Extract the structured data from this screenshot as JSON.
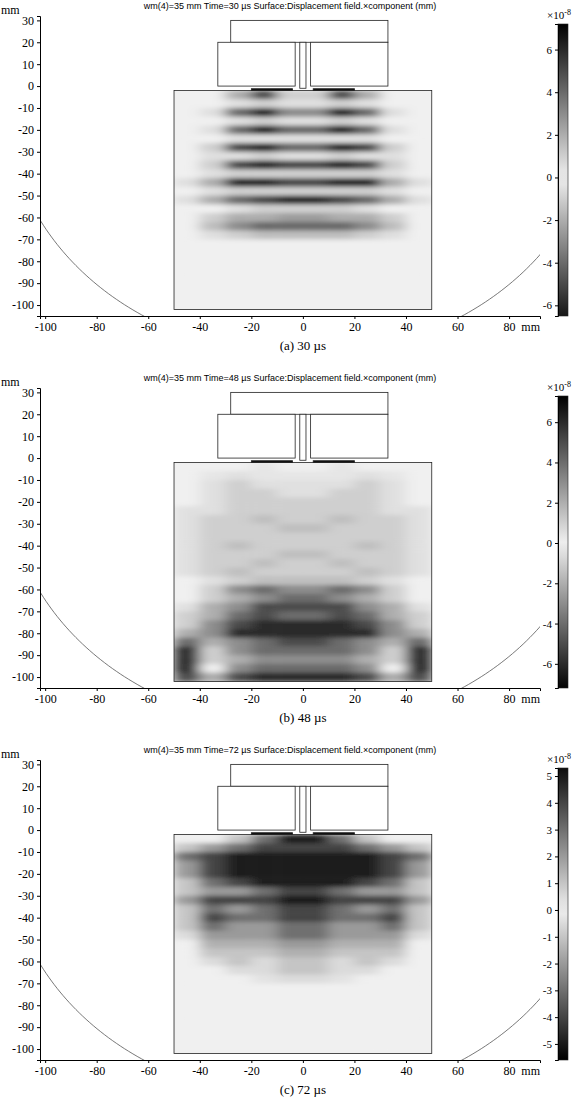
{
  "chart_data": [
    {
      "type": "heatmap",
      "title": "wm(4)=35 mm Time=30 µs Surface:Displacement field.×component (mm)",
      "caption": "(a) 30 µs",
      "x_label": "mm",
      "y_label": "mm",
      "xlim": [
        -102,
        92
      ],
      "ylim": [
        -105,
        32
      ],
      "xticks": [
        -100,
        -80,
        -60,
        -40,
        -20,
        0,
        20,
        40,
        60,
        80
      ],
      "yticks": [
        30,
        20,
        10,
        0,
        -10,
        -20,
        -30,
        -40,
        -50,
        -60,
        -70,
        -80,
        -90,
        -100
      ],
      "colorbar": {
        "range": [
          -6.5,
          7.2
        ],
        "ticks": [
          6,
          4,
          2,
          0,
          -2,
          -4,
          -6
        ],
        "multiplier": "×10",
        "exponent": "-8"
      },
      "field": {
        "x": [
          -50,
          -40,
          -30,
          -20,
          -10,
          0,
          10,
          20,
          30,
          40,
          50
        ],
        "y": [
          -2,
          -6,
          -10,
          -14,
          -18,
          -22,
          -26,
          -30,
          -34,
          -38,
          -42,
          -46,
          -50,
          -54,
          -58,
          -62,
          -66,
          -70,
          -74,
          -78,
          -82,
          -86,
          -90,
          -94,
          -98,
          -102
        ],
        "values": [
          [
            0,
            0,
            -2,
            -5,
            -1,
            -1,
            -5,
            -2,
            0,
            0
          ],
          [
            0,
            0,
            0.5,
            1,
            0.5,
            0.5,
            1,
            0.5,
            0,
            0
          ],
          [
            0,
            -0.5,
            4,
            6,
            3,
            3,
            6,
            4,
            -0.5,
            0
          ],
          [
            0,
            0,
            -0.5,
            -1,
            -0.5,
            -0.5,
            -1,
            -0.5,
            0,
            0
          ],
          [
            0,
            0.5,
            -4,
            -6,
            -4,
            -4,
            -6,
            -4,
            0.5,
            0
          ],
          [
            0,
            0,
            0.5,
            0.5,
            0.5,
            0.5,
            0.5,
            0.5,
            0,
            0
          ],
          [
            0,
            -1,
            5,
            6,
            4,
            4,
            6,
            5,
            -1,
            0
          ],
          [
            0,
            0.5,
            -0.5,
            -1,
            -0.5,
            -0.5,
            -1,
            -0.5,
            0.5,
            0
          ],
          [
            0,
            1,
            -5,
            -6,
            -5,
            -5,
            -6,
            -5,
            1,
            0
          ],
          [
            0,
            -0.5,
            1,
            1,
            1,
            1,
            1,
            1,
            -0.5,
            0
          ],
          [
            -0.5,
            -2,
            6,
            6,
            5,
            5,
            6,
            6,
            -2,
            -0.5
          ],
          [
            0,
            0.5,
            -1,
            -1,
            -1,
            -1,
            -1,
            -1,
            0.5,
            0
          ],
          [
            0.5,
            2,
            -4,
            -5,
            -6,
            -6,
            -5,
            -4,
            2,
            0.5
          ],
          [
            0,
            0,
            0.5,
            1,
            1,
            1,
            1,
            0.5,
            0,
            0
          ],
          [
            0,
            -1,
            2,
            2,
            2.5,
            2.5,
            2,
            2,
            -1,
            0
          ],
          [
            0,
            1.5,
            -3,
            -4,
            -4,
            -4,
            -4,
            -3,
            1.5,
            0
          ],
          [
            0,
            0.5,
            -1,
            -1.5,
            -1.5,
            -1.5,
            -1.5,
            -1,
            0.5,
            0
          ],
          [
            0,
            0,
            0,
            0,
            0,
            0,
            0,
            0,
            0,
            0
          ],
          [
            0,
            0,
            0,
            0,
            0,
            0,
            0,
            0,
            0,
            0
          ],
          [
            0,
            0,
            0,
            0,
            0,
            0,
            0,
            0,
            0,
            0
          ],
          [
            0,
            0,
            0,
            0,
            0,
            0,
            0,
            0,
            0,
            0
          ],
          [
            0,
            0,
            0,
            0,
            0,
            0,
            0,
            0,
            0,
            0
          ],
          [
            0,
            0,
            0,
            0,
            0,
            0,
            0,
            0,
            0,
            0
          ],
          [
            0,
            0,
            0,
            0,
            0,
            0,
            0,
            0,
            0,
            0
          ],
          [
            0,
            0,
            0,
            0,
            0,
            0,
            0,
            0,
            0,
            0
          ]
        ]
      }
    },
    {
      "type": "heatmap",
      "title": "wm(4)=35 mm Time=48 µs Surface:Displacement field.×component (mm)",
      "caption": "(b) 48 µs",
      "x_label": "mm",
      "y_label": "mm",
      "xlim": [
        -102,
        92
      ],
      "ylim": [
        -105,
        32
      ],
      "xticks": [
        -100,
        -80,
        -60,
        -40,
        -20,
        0,
        20,
        40,
        60,
        80
      ],
      "yticks": [
        30,
        20,
        10,
        0,
        -10,
        -20,
        -30,
        -40,
        -50,
        -60,
        -70,
        -80,
        -90,
        -100
      ],
      "colorbar": {
        "range": [
          -7.2,
          7.3
        ],
        "ticks": [
          6,
          4,
          2,
          0,
          -2,
          -4,
          -6
        ],
        "multiplier": "×10",
        "exponent": "-8"
      },
      "field": {
        "x": [
          -50,
          -40,
          -30,
          -20,
          -10,
          0,
          10,
          20,
          30,
          40,
          50
        ],
        "y": [
          -2,
          -6,
          -10,
          -14,
          -18,
          -22,
          -26,
          -30,
          -34,
          -38,
          -42,
          -46,
          -50,
          -54,
          -58,
          -62,
          -66,
          -70,
          -74,
          -78,
          -82,
          -86,
          -90,
          -94,
          -98,
          -102
        ],
        "values": [
          [
            0,
            0,
            0,
            0.3,
            0,
            0,
            0.3,
            0,
            0,
            0
          ],
          [
            0,
            0.3,
            0.5,
            0.3,
            0.3,
            0.3,
            0.3,
            0.5,
            0.3,
            0
          ],
          [
            0,
            -0.5,
            -1,
            -0.5,
            -0.5,
            -0.5,
            -0.5,
            -1,
            -0.5,
            0
          ],
          [
            0,
            0.5,
            1,
            1,
            0.5,
            0.5,
            1,
            1,
            0.5,
            0
          ],
          [
            0,
            -0.5,
            -1,
            -1,
            -1,
            -1,
            -1,
            -1,
            -0.5,
            0
          ],
          [
            0.5,
            0.5,
            1,
            1,
            1,
            1,
            1,
            1,
            0.5,
            0.5
          ],
          [
            -0.5,
            -1,
            -1,
            -1.5,
            -1,
            -1,
            -1.5,
            -1,
            -1,
            -0.5
          ],
          [
            0.5,
            1,
            1,
            1,
            1.5,
            1.5,
            1,
            1,
            1,
            0.5
          ],
          [
            -0.5,
            -1,
            -1,
            -1,
            -1,
            -1,
            -1,
            -1,
            -1,
            -0.5
          ],
          [
            0.5,
            1,
            1.5,
            1,
            1,
            1,
            1,
            1.5,
            1,
            0.5
          ],
          [
            -0.5,
            -1,
            -1,
            -1,
            -1.5,
            -1.5,
            -1,
            -1,
            -1,
            -0.5
          ],
          [
            0.5,
            1,
            1,
            1.5,
            1,
            1,
            1.5,
            1,
            1,
            0.5
          ],
          [
            -0.5,
            -1,
            -1.5,
            -1,
            -1,
            -1,
            -1,
            -1.5,
            -1,
            -0.5
          ],
          [
            0,
            0.5,
            1,
            1.5,
            1.5,
            1.5,
            1.5,
            1,
            0.5,
            0
          ],
          [
            0,
            -1,
            -3,
            -4,
            -3,
            -3,
            -4,
            -3,
            -1,
            0
          ],
          [
            0,
            1,
            2,
            3,
            4,
            4,
            3,
            2,
            1,
            0
          ],
          [
            0.5,
            -2,
            -3,
            -5,
            -5,
            -5,
            -5,
            -3,
            -2,
            0.5
          ],
          [
            1,
            2,
            4,
            5,
            4,
            4,
            5,
            4,
            2,
            1
          ],
          [
            -1,
            -3,
            -5,
            -6,
            -6,
            -6,
            -6,
            -5,
            -3,
            -1
          ],
          [
            -2,
            3,
            6,
            6,
            6,
            6,
            6,
            6,
            3,
            -2
          ],
          [
            4,
            -2,
            -3,
            -4,
            -5,
            -5,
            -4,
            -3,
            -2,
            4
          ],
          [
            -6,
            1,
            3,
            4,
            4,
            4,
            4,
            3,
            1,
            -6
          ],
          [
            6,
            -1,
            -2,
            -3,
            -3,
            -3,
            -3,
            -2,
            -1,
            6
          ],
          [
            -6,
            0,
            3,
            4,
            4,
            4,
            4,
            3,
            0,
            -6
          ],
          [
            5,
            2,
            -5,
            -6,
            -6,
            -6,
            -6,
            -5,
            2,
            5
          ]
        ]
      }
    },
    {
      "type": "heatmap",
      "title": "wm(4)=35 mm Time=72 µs Surface:Displacement field.×component (mm)",
      "caption": "(c) 72 µs",
      "x_label": "mm",
      "y_label": "mm",
      "xlim": [
        -102,
        92
      ],
      "ylim": [
        -105,
        32
      ],
      "xticks": [
        -100,
        -80,
        -60,
        -40,
        -20,
        0,
        20,
        40,
        60,
        80
      ],
      "yticks": [
        30,
        20,
        10,
        0,
        -10,
        -20,
        -30,
        -40,
        -50,
        -60,
        -70,
        -80,
        -90,
        -100
      ],
      "colorbar": {
        "range": [
          -5.6,
          5.3
        ],
        "ticks": [
          5,
          4,
          3,
          2,
          1,
          0,
          -1,
          -2,
          -3,
          -4,
          -5
        ],
        "multiplier": "×10",
        "exponent": "-8"
      },
      "field": {
        "x": [
          -50,
          -40,
          -30,
          -20,
          -10,
          0,
          10,
          20,
          30,
          40,
          50
        ],
        "y": [
          -2,
          -6,
          -10,
          -14,
          -18,
          -22,
          -26,
          -30,
          -34,
          -38,
          -42,
          -46,
          -50,
          -54,
          -58,
          -62,
          -66,
          -70,
          -74,
          -78,
          -82,
          -86,
          -90,
          -94,
          -98,
          -102
        ],
        "values": [
          [
            0,
            0,
            1,
            3,
            5,
            5,
            3,
            1,
            0,
            0
          ],
          [
            -1,
            -2,
            -3,
            -4,
            -4,
            -4,
            -4,
            -3,
            -2,
            -1
          ],
          [
            3,
            4,
            5,
            5,
            5,
            5,
            5,
            5,
            4,
            3
          ],
          [
            -2,
            -4,
            -5,
            -5,
            -5,
            -5,
            -5,
            -5,
            -4,
            -2
          ],
          [
            2,
            4,
            5,
            5,
            5,
            5,
            5,
            5,
            4,
            2
          ],
          [
            -1,
            -3,
            -4,
            -5,
            -5,
            -5,
            -5,
            -4,
            -3,
            -1
          ],
          [
            1,
            2,
            2,
            3,
            4,
            4,
            3,
            2,
            2,
            1
          ],
          [
            -2,
            -4,
            -4,
            -4,
            -5,
            -5,
            -4,
            -4,
            -4,
            -2
          ],
          [
            1,
            3,
            2,
            3,
            4,
            4,
            3,
            2,
            3,
            1
          ],
          [
            -1,
            -4,
            -3,
            -3,
            -4,
            -4,
            -3,
            -3,
            -4,
            -1
          ],
          [
            1,
            3,
            2,
            2,
            3,
            3,
            2,
            2,
            3,
            1
          ],
          [
            -0.5,
            -2,
            -2,
            -2,
            -3,
            -3,
            -2,
            -2,
            -2,
            -0.5
          ],
          [
            0,
            1.5,
            1.5,
            1.5,
            2,
            2,
            1.5,
            1.5,
            1.5,
            0
          ],
          [
            0,
            -1,
            -1,
            -1,
            -1.5,
            -1.5,
            -1,
            -1,
            -1,
            0
          ],
          [
            0,
            0.5,
            1,
            0.5,
            1,
            1,
            0.5,
            1,
            0.5,
            0
          ],
          [
            0,
            0,
            -0.5,
            -0.5,
            -1,
            -1,
            -0.5,
            -0.5,
            0,
            0
          ],
          [
            0,
            0,
            0,
            0.3,
            0.5,
            0.5,
            0.3,
            0,
            0,
            0
          ],
          [
            0,
            0,
            0,
            0,
            0,
            0,
            0,
            0,
            0,
            0
          ],
          [
            0,
            0,
            0,
            0,
            0,
            0,
            0,
            0,
            0,
            0
          ],
          [
            0,
            0,
            0,
            0,
            0,
            0,
            0,
            0,
            0,
            0
          ],
          [
            0,
            0,
            0,
            0,
            0,
            0,
            0,
            0,
            0,
            0
          ],
          [
            0,
            0,
            0,
            0,
            0,
            0,
            0,
            0,
            0,
            0
          ],
          [
            0,
            0,
            0,
            0,
            0,
            0,
            0,
            0,
            0,
            0
          ],
          [
            0,
            0,
            0,
            0,
            0,
            0,
            0,
            0,
            0,
            0
          ],
          [
            0,
            0,
            0,
            0,
            0,
            0,
            0,
            0,
            0,
            0
          ]
        ]
      }
    }
  ]
}
